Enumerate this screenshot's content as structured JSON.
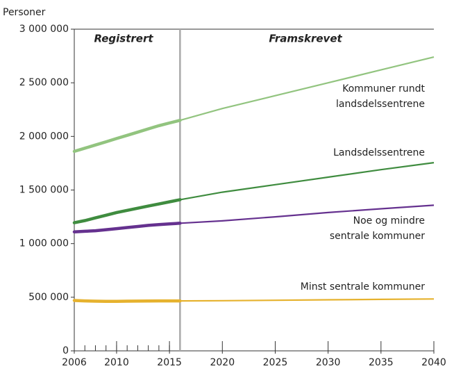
{
  "chart_data": {
    "type": "line",
    "ylabel": "Personer",
    "annotations": [
      "Registrert",
      "Framskrevet"
    ],
    "divider": 2016,
    "x": [
      2006,
      2007,
      2008,
      2009,
      2010,
      2011,
      2012,
      2013,
      2014,
      2015,
      2016,
      2020,
      2025,
      2030,
      2035,
      2040
    ],
    "xlim": [
      2006,
      2040
    ],
    "xticks": [
      2006,
      2010,
      2015,
      2020,
      2025,
      2030,
      2035,
      2040
    ],
    "ylim": [
      0,
      3000000
    ],
    "yticks": [
      0,
      {
        "value": 500000,
        "label": "500 000"
      },
      {
        "value": 1000000,
        "label": "1 000 000"
      },
      {
        "value": 1500000,
        "label": "1 500 000"
      },
      {
        "value": 2000000,
        "label": "2 000 000"
      },
      {
        "value": 2500000,
        "label": "2 500 000"
      },
      {
        "value": 3000000,
        "label": "3 000 000"
      }
    ],
    "series": [
      {
        "name": "Kommuner rundt\nlandsdelssentrene",
        "color": "#92c47f",
        "values": [
          1860000,
          1890000,
          1920000,
          1950000,
          1980000,
          2010000,
          2040000,
          2070000,
          2100000,
          2125000,
          2150000,
          2260000,
          2380000,
          2500000,
          2620000,
          2740000
        ]
      },
      {
        "name": "Landsdelssentrene",
        "color": "#3f8c3f",
        "values": [
          1195000,
          1215000,
          1240000,
          1265000,
          1290000,
          1310000,
          1330000,
          1350000,
          1370000,
          1390000,
          1410000,
          1480000,
          1550000,
          1620000,
          1690000,
          1755000
        ]
      },
      {
        "name": "Noe og mindre\nsentrale kommuner",
        "color": "#65318f",
        "values": [
          1110000,
          1115000,
          1120000,
          1130000,
          1140000,
          1150000,
          1160000,
          1170000,
          1178000,
          1184000,
          1190000,
          1212000,
          1250000,
          1290000,
          1325000,
          1358000
        ]
      },
      {
        "name": "Minst sentrale kommuner",
        "color": "#e6b22e",
        "values": [
          470000,
          466000,
          463000,
          462000,
          462000,
          463000,
          464000,
          465000,
          466000,
          466000,
          466000,
          468000,
          472000,
          476000,
          480000,
          484000
        ]
      }
    ]
  }
}
